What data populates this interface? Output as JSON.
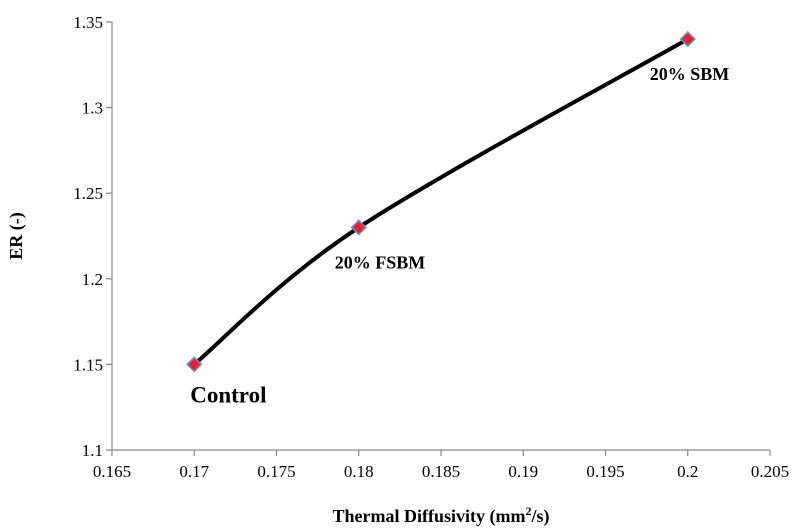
{
  "chart_data": {
    "type": "scatter",
    "title": "",
    "xlabel": "Thermal Diffusivity (mm",
    "xlabel_sup": "2",
    "xlabel_tail": "/s)",
    "ylabel": "ER (-)",
    "xlim": [
      0.165,
      0.205
    ],
    "ylim": [
      1.1,
      1.35
    ],
    "x_ticks": [
      "0.165",
      "0.17",
      "0.175",
      "0.18",
      "0.185",
      "0.19",
      "0.195",
      "0.2",
      "0.205"
    ],
    "y_ticks": [
      "1.1",
      "1.15",
      "1.2",
      "1.25",
      "1.3",
      "1.35"
    ],
    "grid": false,
    "legend": "none",
    "series": [
      {
        "points": [
          {
            "x": 0.17,
            "y": 1.15,
            "label": "Control"
          },
          {
            "x": 0.18,
            "y": 1.23,
            "label": "20% FSBM"
          },
          {
            "x": 0.2,
            "y": 1.34,
            "label": "20% SBM"
          }
        ],
        "line": "smoothed",
        "line_color": "#000000",
        "marker": "diamond",
        "marker_color": "#e8202a",
        "marker_edge_color": "#6a8fcf"
      }
    ]
  }
}
